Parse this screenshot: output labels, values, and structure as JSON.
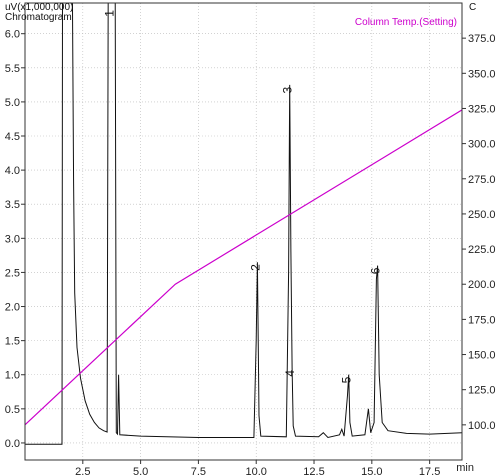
{
  "chart_data": {
    "type": "line",
    "title": "Chromatogram",
    "y_unit_label": "uV(x1,000,000)",
    "y2_unit_label": "C",
    "xlabel": "min",
    "xlim": [
      0,
      18.9
    ],
    "ylim": [
      -0.25,
      6.45
    ],
    "y2lim": [
      75,
      400
    ],
    "x_ticks": [
      "2.5",
      "5.0",
      "7.5",
      "10.0",
      "12.5",
      "15.0",
      "17.5"
    ],
    "x_tick_values": [
      2.5,
      5.0,
      7.5,
      10.0,
      12.5,
      15.0,
      17.5
    ],
    "y_ticks": [
      "0.0",
      "0.5",
      "1.0",
      "1.5",
      "2.0",
      "2.5",
      "3.0",
      "3.5",
      "4.0",
      "4.5",
      "5.0",
      "5.5",
      "6.0"
    ],
    "y_tick_values": [
      0.0,
      0.5,
      1.0,
      1.5,
      2.0,
      2.5,
      3.0,
      3.5,
      4.0,
      4.5,
      5.0,
      5.5,
      6.0
    ],
    "y2_ticks": [
      "100.0",
      "125.0",
      "150.0",
      "175.0",
      "200.0",
      "225.0",
      "250.0",
      "275.0",
      "300.0",
      "325.0",
      "350.0",
      "375.0"
    ],
    "y2_tick_values": [
      100,
      125,
      150,
      175,
      200,
      225,
      250,
      275,
      300,
      325,
      350,
      375
    ],
    "grid": true,
    "legend_position": "top-right",
    "series": [
      {
        "name": "Column Temp.(Setting)",
        "color": "#cc00cc",
        "axis": "right",
        "points": [
          [
            0.0,
            100
          ],
          [
            6.5,
            200
          ],
          [
            18.9,
            324
          ]
        ]
      }
    ],
    "peaks": [
      {
        "label": "1",
        "x": 3.75,
        "y": 6.5
      },
      {
        "label": "2",
        "x": 10.05,
        "y": 2.65
      },
      {
        "label": "3",
        "x": 11.45,
        "y": 5.25
      },
      {
        "label": "4",
        "x": 11.55,
        "y": 1.1
      },
      {
        "label": "5",
        "x": 14.0,
        "y": 1.0
      },
      {
        "label": "6",
        "x": 15.25,
        "y": 2.6
      }
    ],
    "chromatogram": {
      "color": "#111111",
      "points": [
        [
          0.0,
          -0.02
        ],
        [
          1.6,
          -0.02
        ],
        [
          1.62,
          6.6
        ],
        [
          2.05,
          6.6
        ],
        [
          2.1,
          3.8
        ],
        [
          2.15,
          2.2
        ],
        [
          2.25,
          1.4
        ],
        [
          2.4,
          0.95
        ],
        [
          2.6,
          0.62
        ],
        [
          2.8,
          0.42
        ],
        [
          3.0,
          0.3
        ],
        [
          3.2,
          0.22
        ],
        [
          3.4,
          0.18
        ],
        [
          3.55,
          0.16
        ],
        [
          3.6,
          6.6
        ],
        [
          3.9,
          6.6
        ],
        [
          3.95,
          0.15
        ],
        [
          4.0,
          0.13
        ],
        [
          4.05,
          1.0
        ],
        [
          4.1,
          0.12
        ],
        [
          5.0,
          0.1
        ],
        [
          7.5,
          0.08
        ],
        [
          9.9,
          0.08
        ],
        [
          10.0,
          1.5
        ],
        [
          10.05,
          2.65
        ],
        [
          10.12,
          0.4
        ],
        [
          10.2,
          0.1
        ],
        [
          11.3,
          0.09
        ],
        [
          11.4,
          2.5
        ],
        [
          11.45,
          5.25
        ],
        [
          11.5,
          2.8
        ],
        [
          11.55,
          1.1
        ],
        [
          11.6,
          0.25
        ],
        [
          11.7,
          0.1
        ],
        [
          12.7,
          0.09
        ],
        [
          12.9,
          0.15
        ],
        [
          13.1,
          0.08
        ],
        [
          13.6,
          0.12
        ],
        [
          13.7,
          0.2
        ],
        [
          13.8,
          0.1
        ],
        [
          13.95,
          0.7
        ],
        [
          14.0,
          1.0
        ],
        [
          14.05,
          0.3
        ],
        [
          14.15,
          0.1
        ],
        [
          14.7,
          0.12
        ],
        [
          14.85,
          0.5
        ],
        [
          14.95,
          0.15
        ],
        [
          15.1,
          0.3
        ],
        [
          15.2,
          2.4
        ],
        [
          15.25,
          2.6
        ],
        [
          15.32,
          1.0
        ],
        [
          15.45,
          0.3
        ],
        [
          15.7,
          0.18
        ],
        [
          16.5,
          0.14
        ],
        [
          17.5,
          0.13
        ],
        [
          18.9,
          0.15
        ]
      ]
    }
  }
}
